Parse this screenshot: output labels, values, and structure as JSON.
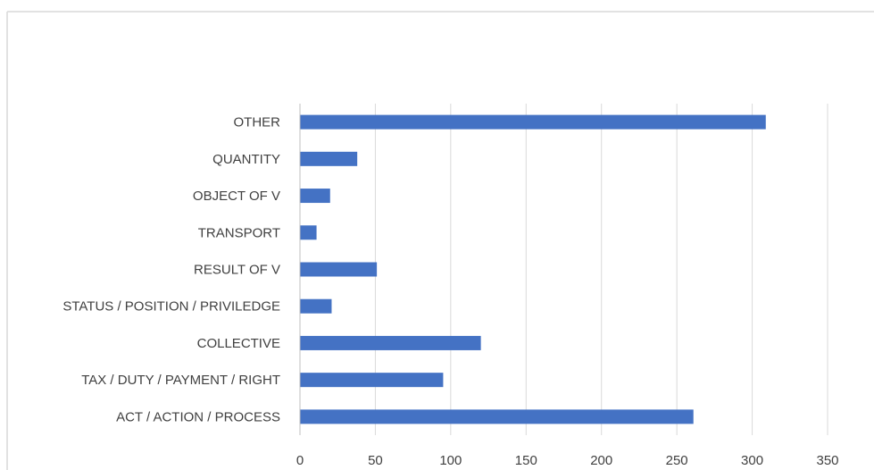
{
  "chart_data": {
    "type": "bar",
    "orientation": "horizontal",
    "categories": [
      "ACT / ACTION / PROCESS",
      "TAX / DUTY / PAYMENT / RIGHT",
      "COLLECTIVE",
      "STATUS / POSITION / PRIVILEDGE",
      "RESULT OF V",
      "TRANSPORT",
      "OBJECT OF V",
      "QUANTITY",
      "OTHER"
    ],
    "values": [
      261,
      95,
      120,
      21,
      51,
      11,
      20,
      38,
      309
    ],
    "title": "",
    "xlabel": "",
    "ylabel": "",
    "xlim": [
      0,
      350
    ],
    "x_ticks": [
      "0",
      "50",
      "100",
      "150",
      "200",
      "250",
      "300",
      "350"
    ],
    "grid": true,
    "legend": "none",
    "bar_color": "#4472c4"
  }
}
